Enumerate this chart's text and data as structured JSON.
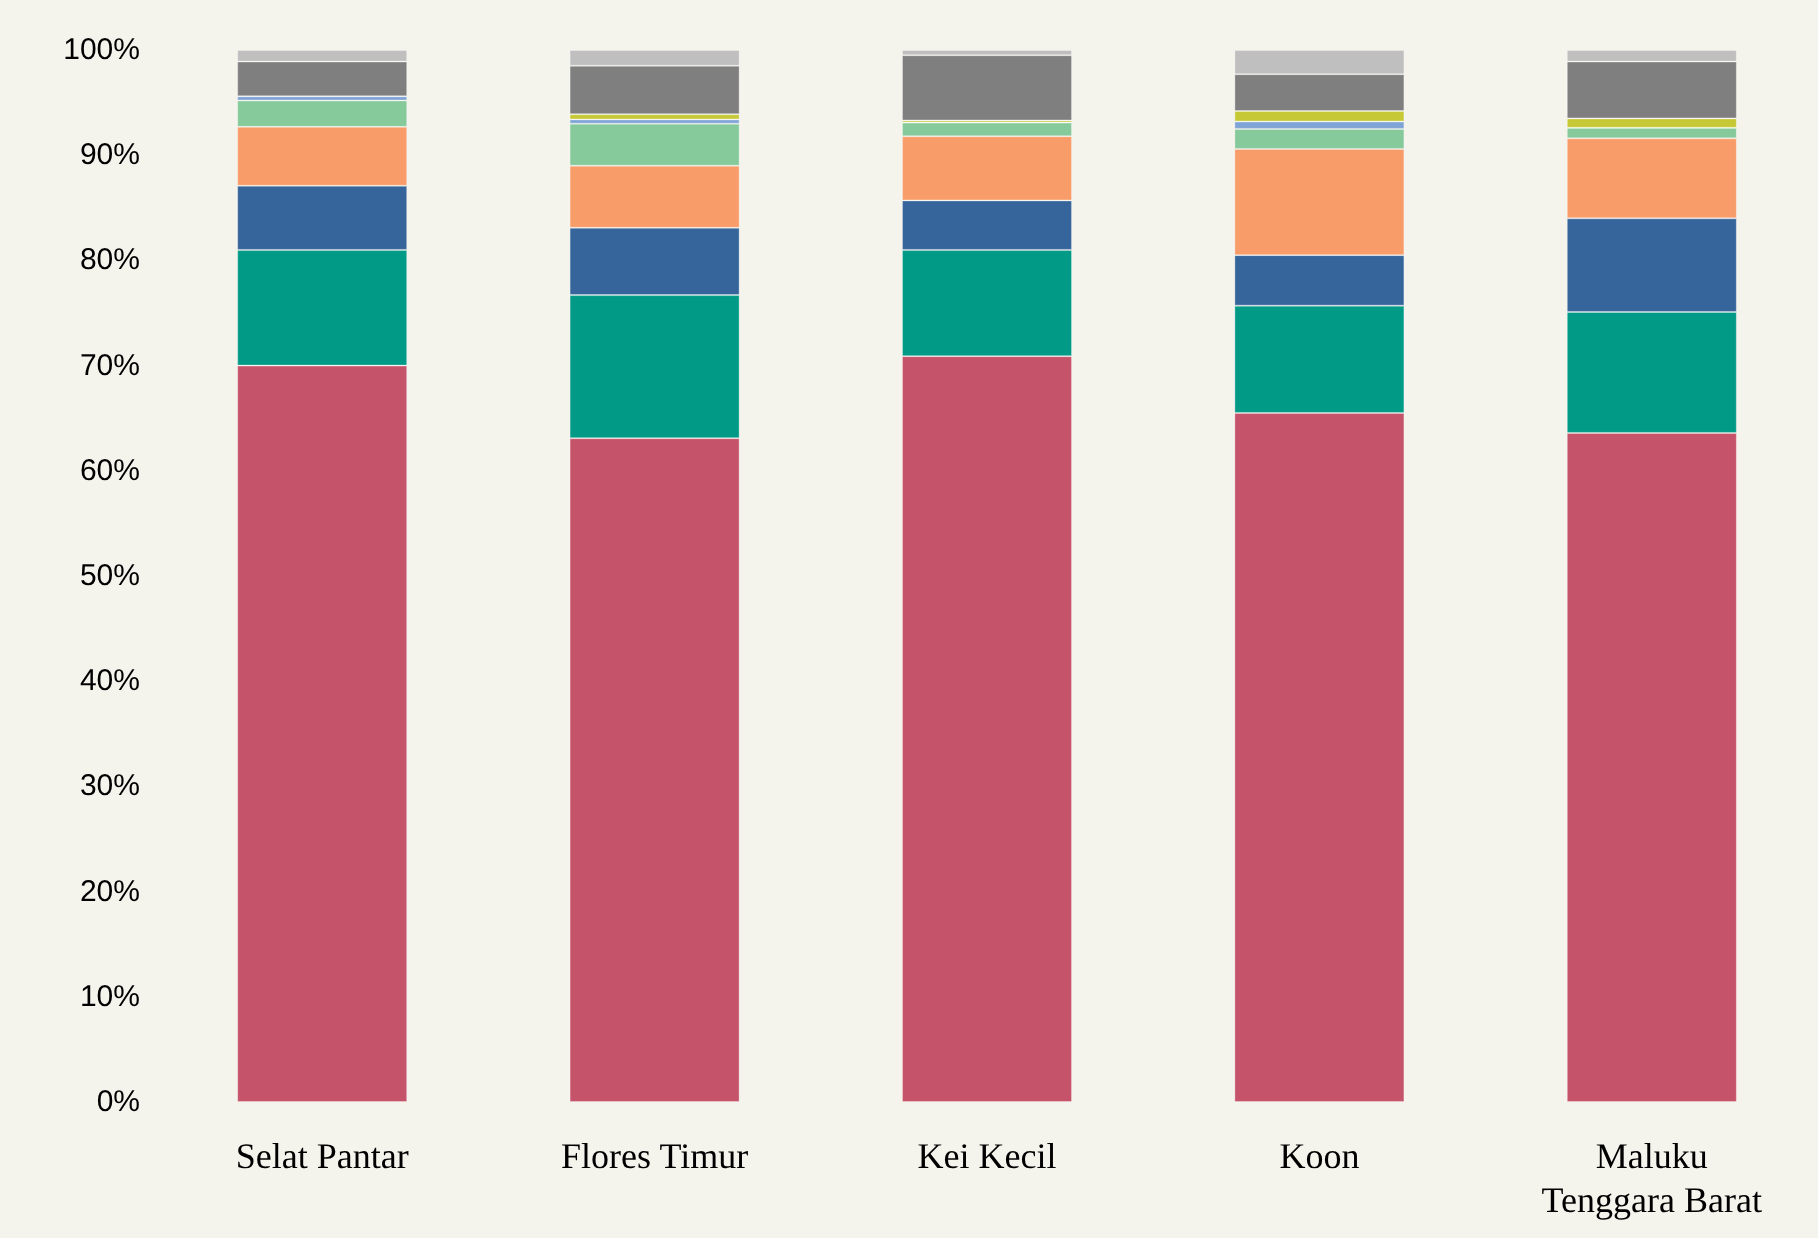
{
  "chart_data": {
    "type": "bar",
    "stacked": true,
    "categories": [
      "Selat Pantar",
      "Flores Timur",
      "Kei Kecil",
      "Koon",
      "Maluku\nTenggara Barat"
    ],
    "series": [
      {
        "color": "#c5536a",
        "values": [
          70,
          63.1,
          70.9,
          65.5,
          63.6
        ]
      },
      {
        "color": "#009a87",
        "values": [
          11,
          13.6,
          10.1,
          10.2,
          11.5
        ]
      },
      {
        "color": "#35659b",
        "values": [
          6.1,
          6.4,
          4.7,
          4.8,
          8.9
        ]
      },
      {
        "color": "#f89c69",
        "values": [
          5.6,
          5.9,
          6.1,
          10.1,
          7.6
        ]
      },
      {
        "color": "#86c99b",
        "values": [
          2.5,
          4.0,
          1.3,
          1.9,
          1.0
        ]
      },
      {
        "color": "#7fa4d6",
        "values": [
          0.4,
          0.4,
          0,
          0.7,
          0
        ]
      },
      {
        "color": "#c6c935",
        "values": [
          0,
          0.5,
          0.2,
          1.0,
          0.9
        ]
      },
      {
        "color": "#7f7f7f",
        "values": [
          3.3,
          4.6,
          6.2,
          3.5,
          5.4
        ]
      },
      {
        "color": "#bfbfbf",
        "values": [
          1.1,
          1.5,
          0.5,
          2.3,
          1.1
        ]
      }
    ],
    "ylim": [
      0,
      100
    ],
    "yticks": [
      {
        "value": 0,
        "label": "0%"
      },
      {
        "value": 10,
        "label": "10%"
      },
      {
        "value": 20,
        "label": "20%"
      },
      {
        "value": 30,
        "label": "30%"
      },
      {
        "value": 40,
        "label": "40%"
      },
      {
        "value": 50,
        "label": "50%"
      },
      {
        "value": 60,
        "label": "60%"
      },
      {
        "value": 70,
        "label": "70%"
      },
      {
        "value": 80,
        "label": "80%"
      },
      {
        "value": 90,
        "label": "90%"
      },
      {
        "value": 100,
        "label": "100%"
      }
    ],
    "grid": false
  }
}
